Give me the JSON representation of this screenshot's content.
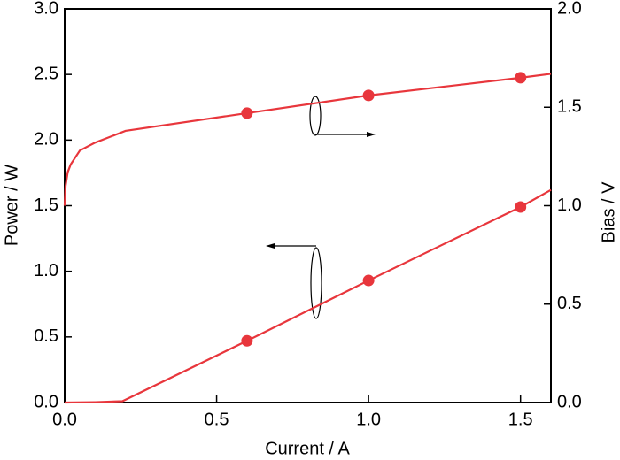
{
  "chart_data": {
    "type": "line",
    "xlabel": "Current / A",
    "ylabel": "Power / W",
    "y2label": "Bias / V",
    "xlim": [
      0,
      1.6
    ],
    "xticks": [
      {
        "value": 0,
        "label": "0.0"
      },
      0.5,
      {
        "value": 1,
        "label": "1.0"
      },
      1.5
    ],
    "ylim": [
      0,
      3
    ],
    "yticks": [
      {
        "value": 0,
        "label": "0.0"
      },
      0.5,
      {
        "value": 1,
        "label": "1.0"
      },
      1.5,
      {
        "value": 2,
        "label": "2.0"
      },
      2.5,
      {
        "value": 3,
        "label": "3.0"
      }
    ],
    "y2lim": [
      0,
      2
    ],
    "y2ticks": [
      {
        "value": 0,
        "label": "0.0"
      },
      0.5,
      {
        "value": 1,
        "label": "1.0"
      },
      1.5,
      {
        "value": 2,
        "label": "2.0"
      }
    ],
    "series": [
      {
        "color": "#e8363c",
        "marker": false,
        "x": [
          0,
          0.1,
          0.19,
          0.6,
          1.0,
          1.5,
          1.6
        ],
        "values": [
          0,
          0.003,
          0.01,
          0.47,
          0.93,
          1.49,
          1.62
        ]
      },
      {
        "color": "#e8363c",
        "marker": true,
        "x": [
          0.6,
          1.0,
          1.5
        ],
        "values": [
          0.47,
          0.93,
          1.49
        ]
      },
      {
        "color": "#e8363c",
        "marker": false,
        "axis": "y2",
        "x": [
          0,
          0.003,
          0.01,
          0.02,
          0.05,
          0.1,
          0.2,
          0.6,
          1.0,
          1.5,
          1.6
        ],
        "values": [
          1.0,
          1.1,
          1.17,
          1.21,
          1.28,
          1.32,
          1.38,
          1.47,
          1.56,
          1.65,
          1.67
        ]
      },
      {
        "color": "#e8363c",
        "marker": true,
        "axis": "y2",
        "x": [
          0.6,
          1.0,
          1.5
        ],
        "values": [
          1.47,
          1.56,
          1.65
        ]
      }
    ]
  }
}
